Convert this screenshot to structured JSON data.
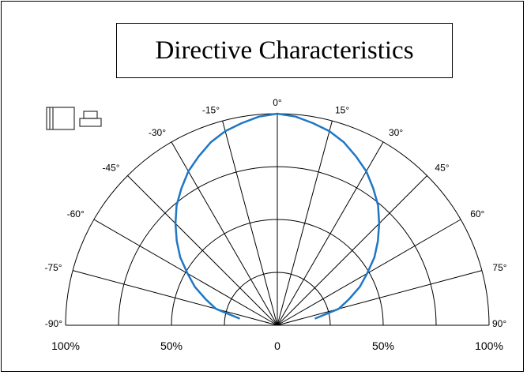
{
  "chart_data": {
    "type": "polar",
    "title": "Directive Characteristics",
    "angle_unit": "degrees",
    "angle_ticks": [
      "-90°",
      "-75°",
      "-60°",
      "-45°",
      "-30°",
      "-15°",
      "0°",
      "15°",
      "30°",
      "45°",
      "60°",
      "75°",
      "90°"
    ],
    "angle_values": [
      -90,
      -75,
      -60,
      -45,
      -30,
      -15,
      0,
      15,
      30,
      45,
      60,
      75,
      90
    ],
    "radial_labels": [
      "100%",
      "50%",
      "0",
      "50%",
      "100%"
    ],
    "radial_range": [
      0,
      100
    ],
    "radial_rings": [
      25,
      50,
      75,
      100
    ],
    "series": [
      {
        "color": "#1f77c4",
        "angles": [
          -80,
          -75,
          -70,
          -65,
          -60,
          -55,
          -50,
          -45,
          -40,
          -35,
          -30,
          -25,
          -20,
          -15,
          -10,
          -5,
          0,
          5,
          10,
          15,
          20,
          25,
          30,
          35,
          40,
          45,
          50,
          55,
          60,
          65,
          70,
          75,
          80
        ],
        "values": [
          18,
          30,
          36,
          43,
          49,
          56,
          62,
          68,
          74,
          79,
          84,
          88,
          92,
          95,
          97,
          99,
          100,
          99,
          97,
          95,
          92,
          88,
          84,
          79,
          74,
          68,
          62,
          56,
          49,
          43,
          36,
          30,
          18
        ]
      }
    ],
    "grid": true,
    "icons": [
      "panel-front-icon",
      "package-side-icon"
    ]
  }
}
